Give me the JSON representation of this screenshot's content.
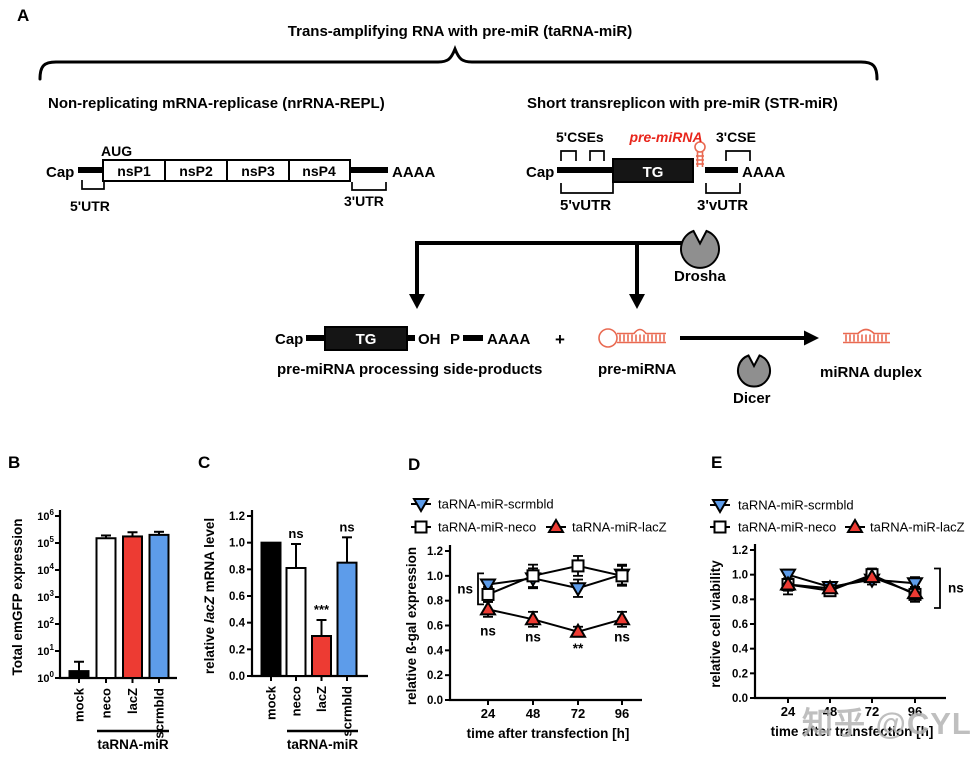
{
  "watermark": "知乎 @CYL",
  "colors": {
    "red": "#ED3B33",
    "blue": "#5D9CEA",
    "black": "#000000",
    "white": "#FFFFFF",
    "rna_red": "#E96A52",
    "enzyme_gray": "#8F8F8F",
    "label_red": "#E8251B"
  },
  "panels": {
    "a": "A",
    "b": "B",
    "c": "C",
    "d": "D",
    "e": "E"
  },
  "panel_a": {
    "title": "Trans-amplifying RNA with pre-miR (taRNA-miR)",
    "nrRNA": {
      "title": "Non-replicating mRNA-replicase (nrRNA-REPL)",
      "cap": "Cap",
      "aug": "AUG",
      "nsp1": "nsP1",
      "nsp2": "nsP2",
      "nsp3": "nsP3",
      "nsp4": "nsP4",
      "polyA": "AAAA",
      "utr5": "5'UTR",
      "utr3": "3'UTR"
    },
    "str": {
      "title": "Short transreplicon with pre-miR (STR-miR)",
      "cap": "Cap",
      "cses5": "5'CSEs",
      "pre_mirna": "pre-miRNA",
      "cse3": "3'CSE",
      "tg": "TG",
      "polyA": "AAAA",
      "vutr5": "5'vUTR",
      "vutr3": "3'vUTR"
    },
    "drosha": "Drosha",
    "products": {
      "cap": "Cap",
      "tg": "TG",
      "oh": "OH",
      "p": "P",
      "polyA": "AAAA",
      "plus": "+",
      "side_products": "pre-miRNA processing side-products",
      "pre_mirna": "pre-miRNA",
      "dicer": "Dicer",
      "mirna_duplex": "miRNA duplex"
    }
  },
  "chart_data": [
    {
      "id": "chartB",
      "panel": "B",
      "type": "bar",
      "yscale": "log",
      "ylabel": "Total emGFP expression",
      "ylim": [
        1,
        1000000
      ],
      "ytick_exponents": [
        0,
        1,
        2,
        3,
        4,
        5,
        6
      ],
      "categories": [
        "mock",
        "neco",
        "lacZ",
        "scrmbld"
      ],
      "values": [
        1.8,
        150000,
        175000,
        200000
      ],
      "errors_high": [
        4,
        190000,
        250000,
        260000
      ],
      "annotations": [
        "",
        "",
        "",
        ""
      ],
      "bar_colors": [
        "black",
        "white",
        "red",
        "blue"
      ],
      "group_label": "taRNA-miR",
      "group_span": [
        1,
        3
      ]
    },
    {
      "id": "chartC",
      "panel": "C",
      "type": "bar",
      "yscale": "linear",
      "ylabel_rich": [
        {
          "t": "relative "
        },
        {
          "t": "lacZ",
          "italic": true
        },
        {
          "t": " mRNA level"
        }
      ],
      "ylim": [
        0,
        1.2
      ],
      "yticks": [
        0,
        0.2,
        0.4,
        0.6,
        0.8,
        1,
        1.2
      ],
      "categories": [
        "mock",
        "neco",
        "lacZ",
        "scrmbld"
      ],
      "values": [
        1.0,
        0.81,
        0.3,
        0.85
      ],
      "errors_high": [
        1.0,
        0.99,
        0.42,
        1.04
      ],
      "annotations": [
        "",
        "ns",
        "***",
        "ns"
      ],
      "bar_colors": [
        "black",
        "white",
        "red",
        "blue"
      ],
      "group_label": "taRNA-miR",
      "group_span": [
        1,
        3
      ]
    },
    {
      "id": "chartD",
      "panel": "D",
      "type": "line",
      "ylabel": "relative ß-gal expression",
      "xlabel": "time after transfection [h]",
      "ylim": [
        0,
        1.2
      ],
      "yticks": [
        0,
        0.2,
        0.4,
        0.6,
        0.8,
        1,
        1.2
      ],
      "x": [
        24,
        48,
        72,
        96
      ],
      "series": [
        {
          "name": "taRNA-miR-scrmbld",
          "marker": "triangle-down",
          "color": "blue",
          "values": [
            0.93,
            0.98,
            0.9,
            1.01
          ],
          "errors": [
            0.04,
            0.08,
            0.07,
            0.08
          ]
        },
        {
          "name": "taRNA-miR-neco",
          "marker": "square",
          "color": "white",
          "values": [
            0.85,
            1.0,
            1.08,
            1.0
          ],
          "errors": [
            0.06,
            0.09,
            0.08,
            0.08
          ]
        },
        {
          "name": "taRNA-miR-lacZ",
          "marker": "triangle-up",
          "color": "red",
          "values": [
            0.73,
            0.65,
            0.55,
            0.65
          ],
          "errors": [
            0.06,
            0.06,
            0.04,
            0.06
          ]
        }
      ],
      "annotations": [
        {
          "xi": 0,
          "text": "ns",
          "y": 0.52
        },
        {
          "xi": 1,
          "text": "ns",
          "y": 0.47
        },
        {
          "xi": 2,
          "text": "**",
          "y": 0.38
        },
        {
          "xi": 3,
          "text": "ns",
          "y": 0.47
        }
      ],
      "bracket": {
        "side": "left",
        "text": "ns",
        "y_top": 1.02,
        "y_bot": 0.77
      }
    },
    {
      "id": "chartE",
      "panel": "E",
      "type": "line",
      "ylabel": "relative cell viability",
      "xlabel": "time after transfection [h]",
      "ylim": [
        0,
        1.2
      ],
      "yticks": [
        0,
        0.2,
        0.4,
        0.6,
        0.8,
        1,
        1.2
      ],
      "x": [
        24,
        48,
        72,
        96
      ],
      "series": [
        {
          "name": "taRNA-miR-scrmbld",
          "marker": "triangle-down",
          "color": "blue",
          "values": [
            1.0,
            0.9,
            0.96,
            0.93
          ],
          "errors": [
            0.04,
            0.04,
            0.04,
            0.05
          ]
        },
        {
          "name": "taRNA-miR-neco",
          "marker": "square",
          "color": "white",
          "values": [
            0.92,
            0.87,
            1.0,
            0.84
          ],
          "errors": [
            0.08,
            0.04,
            0.05,
            0.06
          ]
        },
        {
          "name": "taRNA-miR-lacZ",
          "marker": "triangle-up",
          "color": "red",
          "values": [
            0.92,
            0.89,
            0.98,
            0.85
          ],
          "errors": [
            0.05,
            0.04,
            0.04,
            0.05
          ]
        }
      ],
      "annotations": [],
      "bracket": {
        "side": "right",
        "text": "ns",
        "y_top": 1.05,
        "y_bot": 0.73
      }
    }
  ]
}
